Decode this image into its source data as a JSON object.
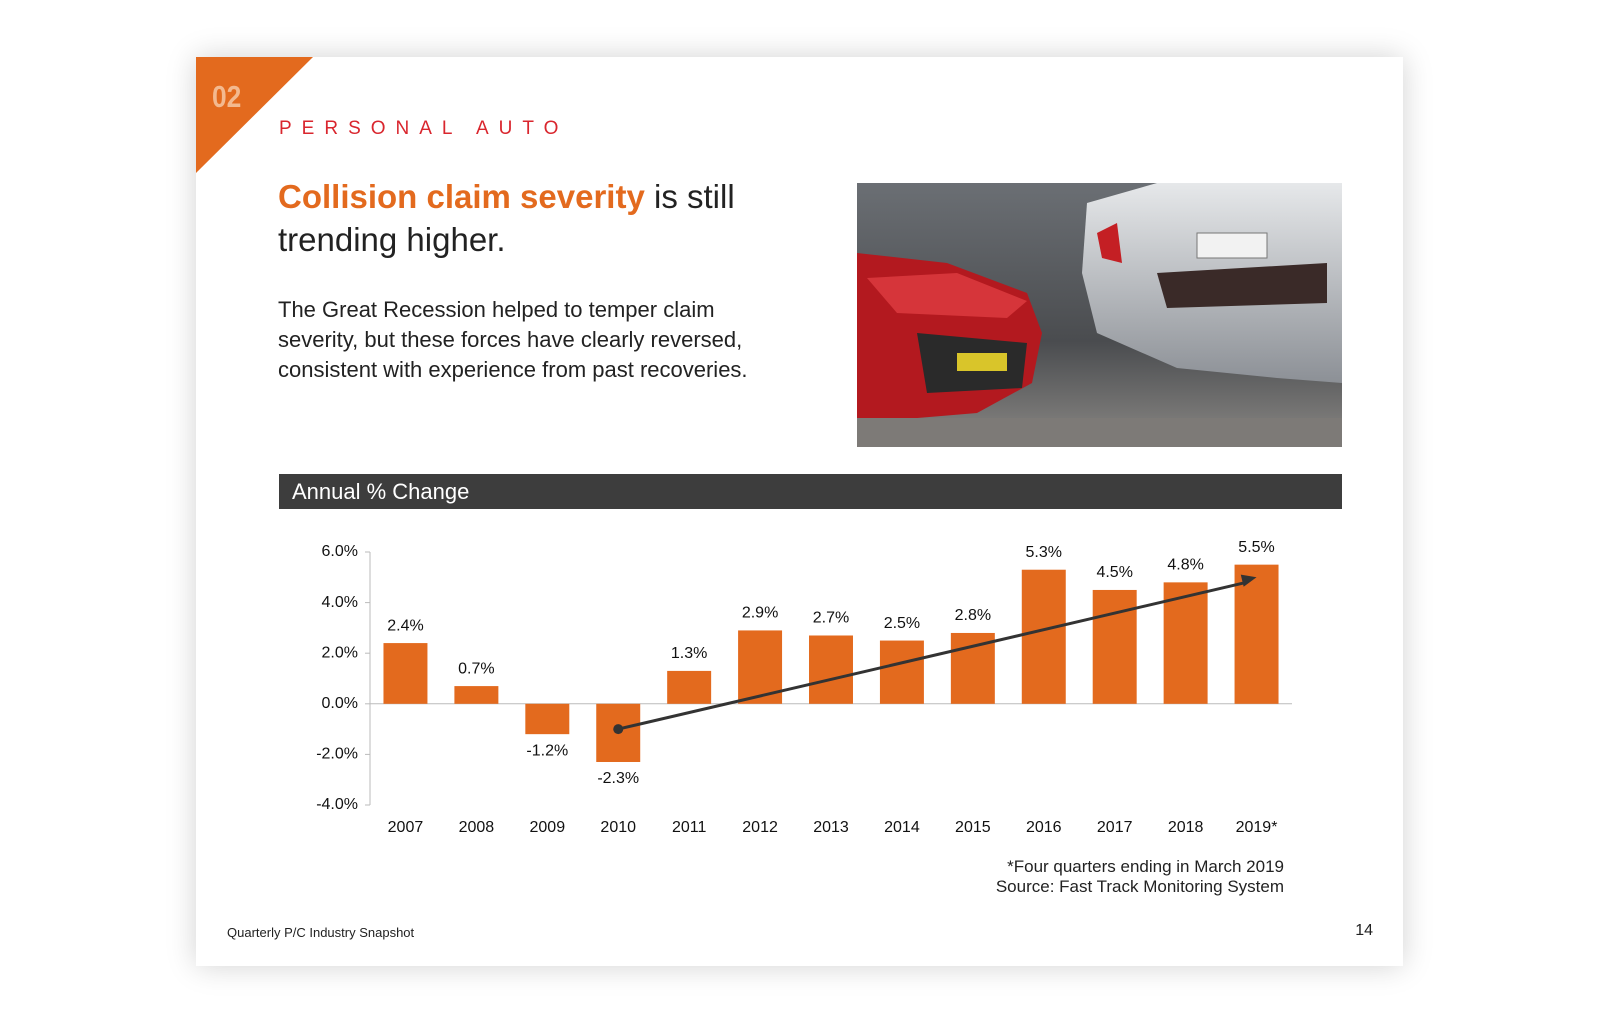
{
  "section_number": "02",
  "section_label": "PERSONAL AUTO",
  "headline": {
    "highlight": "Collision claim severity",
    "text": "is still trending higher."
  },
  "body": "The Great Recession helped to temper claim severity, but these forces have clearly reversed, consistent with experience from past recoveries.",
  "chart_data": {
    "type": "bar",
    "title": "Annual % Change",
    "categories": [
      "2007",
      "2008",
      "2009",
      "2010",
      "2011",
      "2012",
      "2013",
      "2014",
      "2015",
      "2016",
      "2017",
      "2018",
      "2019*"
    ],
    "values": [
      2.4,
      0.7,
      -1.2,
      -2.3,
      1.3,
      2.9,
      2.7,
      2.5,
      2.8,
      5.3,
      4.5,
      4.8,
      5.5
    ],
    "value_labels": [
      "2.4%",
      "0.7%",
      "-1.2%",
      "-2.3%",
      "1.3%",
      "2.9%",
      "2.7%",
      "2.5%",
      "2.8%",
      "5.3%",
      "4.5%",
      "4.8%",
      "5.5%"
    ],
    "color": "#e36a1e",
    "ylim": [
      -4,
      6
    ],
    "yticks": [
      {
        "value": -4,
        "label": "-4.0%"
      },
      {
        "value": -2,
        "label": "-2.0%"
      },
      {
        "value": 0,
        "label": "0.0%"
      },
      {
        "value": 2,
        "label": "2.0%"
      },
      {
        "value": 4,
        "label": "4.0%"
      },
      {
        "value": 6,
        "label": "6.0%"
      }
    ],
    "trend_line": {
      "values": [
        -1.0,
        5.0
      ]
    },
    "notes": [
      "*Four quarters ending in March 2019",
      "Source: Fast Track Monitoring System"
    ]
  },
  "footer": {
    "title": "Quarterly P/C Industry Snapshot",
    "page": "14"
  }
}
